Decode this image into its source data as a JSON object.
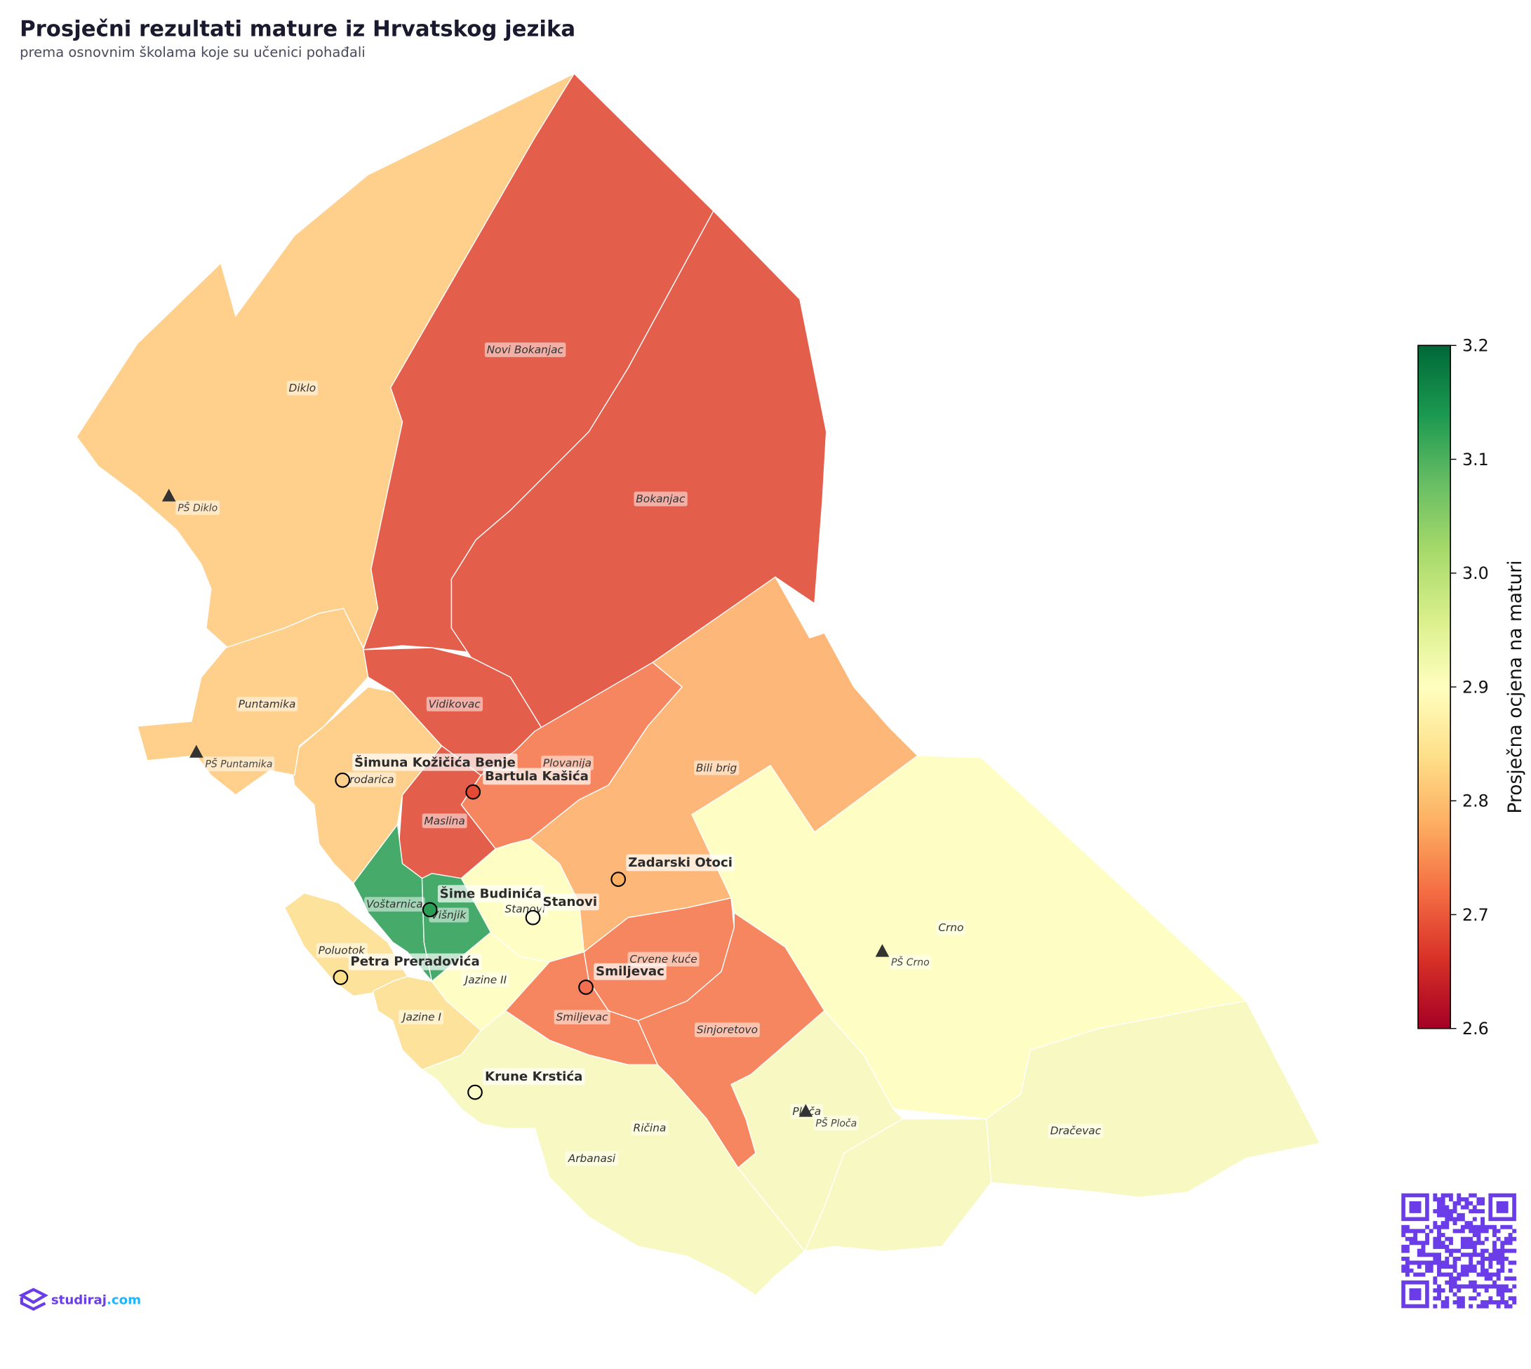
{
  "title": "Prosječni rezultati mature iz Hrvatskog jezika",
  "subtitle": "prema osnovnim školama koje su učenici pohađali",
  "regions": {
    "diklo": {
      "name": "Diklo",
      "value": 2.83,
      "color": "#fed08c"
    },
    "novi_bokanjac": {
      "name": "Novi Bokanjac",
      "value": 2.68,
      "color": "#e45e4c"
    },
    "bokanjac": {
      "name": "Bokanjac",
      "value": 2.68,
      "color": "#e45e4c"
    },
    "vidikovac": {
      "name": "Vidikovac",
      "value": 2.68,
      "color": "#e45e4c"
    },
    "maslina": {
      "name": "Maslina",
      "value": 2.68,
      "color": "#e45e4c"
    },
    "plovanija": {
      "name": "Plovanija",
      "value": 2.74,
      "color": "#f5865f"
    },
    "bili_brig": {
      "name": "Bili brig",
      "value": 2.8,
      "color": "#fdb879"
    },
    "crno": {
      "name": "Crno",
      "value": 2.9,
      "color": "#fefec4"
    },
    "dracevac": {
      "name": "Dračevac",
      "value": 2.91,
      "color": "#f8f9c2"
    },
    "sinjoretovo": {
      "name": "Sinjoretovo",
      "value": 2.74,
      "color": "#f5865f"
    },
    "crvene_kuce": {
      "name": "Crvene kuće",
      "value": 2.74,
      "color": "#f5865f"
    },
    "smiljevac": {
      "name": "Smiljevac",
      "value": 2.74,
      "color": "#f5865f"
    },
    "stanovi": {
      "name": "Stanovi",
      "value": 2.9,
      "color": "#fefec4"
    },
    "jazine_ii": {
      "name": "Jazine II",
      "value": 2.9,
      "color": "#fefec4"
    },
    "vostarnica": {
      "name": "Voštarnica",
      "value": 3.12,
      "color": "#45aa6a"
    },
    "visnjik": {
      "name": "Višnjik",
      "value": 3.12,
      "color": "#45aa6a"
    },
    "brodarica": {
      "name": "Brodarica",
      "value": 2.83,
      "color": "#fed08c"
    },
    "puntamika": {
      "name": "Puntamika",
      "value": 2.83,
      "color": "#fed08c"
    },
    "poluotok": {
      "name": "Poluotok",
      "value": 2.86,
      "color": "#fde29b"
    },
    "jazine_i": {
      "name": "Jazine I",
      "value": 2.86,
      "color": "#fde29b"
    },
    "ricina": {
      "name": "Ričina",
      "value": 2.91,
      "color": "#f8f9c2"
    },
    "arbanasi": {
      "name": "Arbanasi",
      "value": 2.91,
      "color": "#f8f9c2"
    },
    "ploca": {
      "name": "Ploča",
      "value": 2.91,
      "color": "#f8f9c2"
    }
  },
  "schools": [
    {
      "name": "Šimuna Kožičića Benje",
      "color": "#fed08c"
    },
    {
      "name": "Bartula Kašića",
      "color": "#e34a33"
    },
    {
      "name": "Zadarski Otoci",
      "color": "#fdb05f"
    },
    {
      "name": "Šime Budinića",
      "color": "#2a9b52"
    },
    {
      "name": "Stanovi",
      "color": "#fefee0"
    },
    {
      "name": "Petra Preradovića",
      "color": "#fde08a"
    },
    {
      "name": "Smiljevac",
      "color": "#f26f4f"
    },
    {
      "name": "Krune Krstića",
      "color": "#fbfcc8"
    }
  ],
  "satellite_schools": [
    {
      "name": "PŠ Diklo"
    },
    {
      "name": "PŠ Puntamika"
    },
    {
      "name": "PŠ Crno"
    },
    {
      "name": "PŠ Ploča"
    }
  ],
  "colorbar": {
    "label": "Prosječna ocjena na maturi",
    "min": 2.6,
    "max": 3.2,
    "ticks": [
      "3.2",
      "3.1",
      "3.0",
      "2.9",
      "2.8",
      "2.7",
      "2.6"
    ]
  },
  "logo": {
    "text_main": "studiraj",
    "text_domain": ".com",
    "color_main": "#6a3de8",
    "color_domain": "#1fb6ff"
  },
  "qr_color": "#6a3de8"
}
